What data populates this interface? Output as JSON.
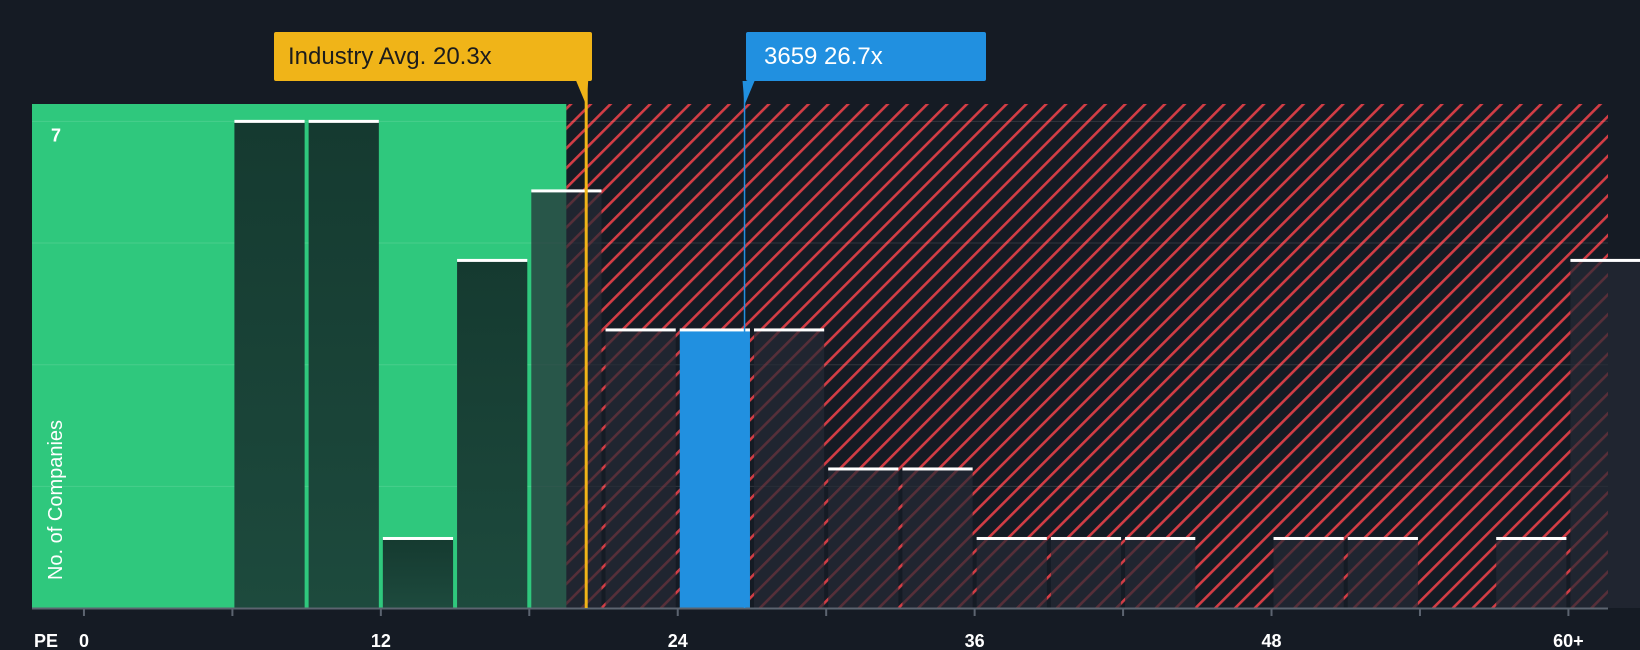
{
  "chart_data": {
    "type": "bar",
    "title": "",
    "xlabel": "PE",
    "ylabel": "No. of Companies",
    "x_ticks": [
      {
        "value": 0,
        "label": "0"
      },
      {
        "value": 12,
        "label": "12"
      },
      {
        "value": 24,
        "label": "24"
      },
      {
        "value": 36,
        "label": "36"
      },
      {
        "value": 48,
        "label": "48"
      },
      {
        "value": 60,
        "label": "60+"
      }
    ],
    "y_tick_labels": [
      {
        "value": 7,
        "label": "7"
      }
    ],
    "xlim": [
      -2.1,
      61.6
    ],
    "ylim": [
      0,
      7.25
    ],
    "bin_width": 3,
    "fair_value_max": 19.5,
    "bins": [
      {
        "start": 6,
        "count": 7
      },
      {
        "start": 9,
        "count": 7
      },
      {
        "start": 12,
        "count": 1
      },
      {
        "start": 15,
        "count": 5
      },
      {
        "start": 18,
        "count": 6
      },
      {
        "start": 21,
        "count": 4
      },
      {
        "start": 24,
        "count": 4,
        "highlight": true
      },
      {
        "start": 27,
        "count": 4
      },
      {
        "start": 30,
        "count": 2
      },
      {
        "start": 33,
        "count": 2
      },
      {
        "start": 36,
        "count": 1
      },
      {
        "start": 39,
        "count": 1
      },
      {
        "start": 42,
        "count": 1
      },
      {
        "start": 48,
        "count": 1
      },
      {
        "start": 51,
        "count": 1
      },
      {
        "start": 57,
        "count": 1
      },
      {
        "start": 60,
        "count": 5
      }
    ],
    "annotations": [
      {
        "id": "industry",
        "label": "Industry Avg. 20.3x",
        "value": 20.3,
        "color": "#f0b418",
        "text_color": "#1c1c1c"
      },
      {
        "id": "company",
        "label": "3659 26.7x",
        "value": 26.7,
        "color": "#2190e0",
        "text_color": "#ffffff"
      }
    ]
  },
  "colors": {
    "background": "#151b24",
    "fair_zone": "#2fc87d",
    "bar_fair": "#1d4a3d",
    "over_zone_stripe": "#d23d45",
    "bar_over": "#262a35",
    "bar_highlight": "#2190e0",
    "bar_top": "#ffffff",
    "axis": "#5c6470"
  }
}
